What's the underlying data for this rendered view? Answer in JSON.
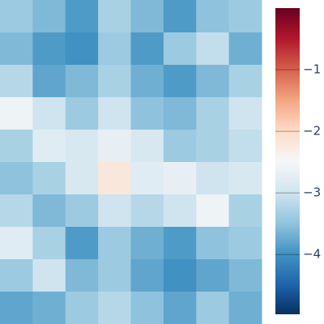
{
  "chart_data": {
    "type": "heatmap",
    "z": [
      [
        -3.4,
        -3.6,
        -3.9,
        -3.3,
        -3.6,
        -3.9,
        -3.5,
        -3.4
      ],
      [
        -3.6,
        -3.9,
        -4.0,
        -3.4,
        -3.9,
        -3.4,
        -3.1,
        -3.7
      ],
      [
        -3.2,
        -3.8,
        -3.6,
        -3.3,
        -3.7,
        -3.9,
        -3.6,
        -3.3
      ],
      [
        -2.6,
        -3.0,
        -3.4,
        -3.0,
        -3.5,
        -3.6,
        -3.3,
        -3.0
      ],
      [
        -3.3,
        -2.8,
        -2.9,
        -2.7,
        -2.9,
        -3.4,
        -3.3,
        -3.1
      ],
      [
        -3.5,
        -3.3,
        -2.9,
        -2.2,
        -2.8,
        -2.7,
        -3.0,
        -2.9
      ],
      [
        -3.2,
        -3.6,
        -3.4,
        -3.0,
        -3.2,
        -3.0,
        -2.6,
        -3.3
      ],
      [
        -2.8,
        -3.3,
        -3.9,
        -3.4,
        -3.7,
        -3.9,
        -3.5,
        -3.4
      ],
      [
        -3.4,
        -3.0,
        -3.6,
        -3.4,
        -3.8,
        -4.0,
        -3.8,
        -3.6
      ],
      [
        -3.8,
        -3.7,
        -3.4,
        -3.2,
        -3.5,
        -3.8,
        -3.4,
        -3.7
      ]
    ],
    "zlim": [
      -4.97,
      0
    ],
    "colorbar_ticks": [
      {
        "value": -1,
        "label": "−1"
      },
      {
        "value": -2,
        "label": "−2"
      },
      {
        "value": -3,
        "label": "−3"
      },
      {
        "value": -4,
        "label": "−4"
      }
    ],
    "colorscale": [
      "#053061",
      "#2166ac",
      "#4393c3",
      "#92c5de",
      "#d1e5f0",
      "#f7f7f7",
      "#fddbc7",
      "#f4a582",
      "#d6604d",
      "#b2182b",
      "#67001f"
    ]
  }
}
